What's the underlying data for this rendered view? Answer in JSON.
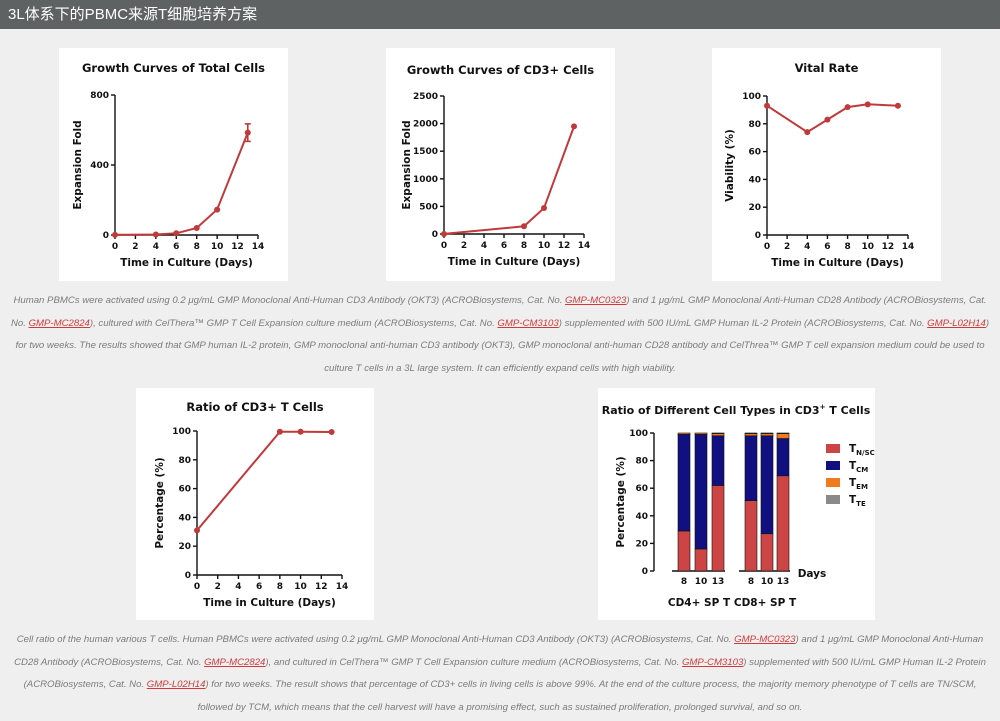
{
  "header": {
    "title": "3L体系下的PBMC来源T细胞培养方案"
  },
  "colors": {
    "series": "#c0393b",
    "tn_scm": "#cd4444",
    "tcm": "#111080",
    "tem": "#f07b1e",
    "tte": "#8a8a8a",
    "link": "#d23a3a"
  },
  "caption1": {
    "p1": "Human PBMCs were activated using 0.2 μg/mL GMP Monoclonal Anti-Human CD3 Antibody (OKT3) (ACROBiosystems, Cat. No. ",
    "l1": "GMP-MC0323",
    "p2": ") and 1 μg/mL GMP Monoclonal Anti-Human CD28 Antibody (ACROBiosystems, Cat. No. ",
    "l2": "GMP-MC2824",
    "p3": "), cultured with CelThera™ GMP T Cell Expansion culture medium (ACROBiosystems, Cat. No. ",
    "l3": "GMP-CM3103",
    "p4": ") supplemented with 500 IU/mL GMP Human IL-2 Protein (ACROBiosystems, Cat. No. ",
    "l4": "GMP-L02H14",
    "p5": ") for two weeks. The results showed that GMP human IL-2 protein, GMP monoclonal anti-human CD3 antibody (OKT3), GMP monoclonal anti-human CD28 antibody and CelThrea™ GMP T cell expansion medium could be used to culture T cells in a 3L large system. It can efficiently expand cells with high viability."
  },
  "caption2": {
    "p1": "Cell ratio of the human various T cells. Human PBMCs were activated using 0.2 μg/mL GMP Monoclonal Anti-Human CD3 Antibody (OKT3) (ACROBiosystems, Cat. No. ",
    "l1": "GMP-MC0323",
    "p2": ") and 1 μg/mL GMP Monoclonal Anti-Human CD28 Antibody (ACROBiosystems, Cat. No. ",
    "l2": "GMP-MC2824",
    "p3": "), and cultured in CelThera™ GMP T Cell Expansion culture medium (ACROBiosystems, Cat. No. ",
    "l3": "GMP-CM3103",
    "p4": ") supplemented with 500 IU/mL GMP Human IL-2 Protein (ACROBiosystems, Cat. No. ",
    "l4": "GMP-L02H14",
    "p5": ") for two weeks. The result shows that percentage of CD3+ cells in living cells is above 99%. At the end of the culture process, the majority memory phenotype of T cells are TN/SCM, followed by TCM, which means that the cell harvest will have a promising effect, such as sustained proliferation, prolonged survival, and so on."
  },
  "chart_data": [
    {
      "type": "line",
      "title": "Growth Curves of Total Cells",
      "xlabel": "Time in Culture (Days)",
      "ylabel": "Expansion Fold",
      "xlim": [
        0,
        14
      ],
      "ylim": [
        0,
        800
      ],
      "xticks": [
        0,
        2,
        4,
        6,
        8,
        10,
        12,
        14
      ],
      "yticks": [
        0,
        400,
        800
      ],
      "x": [
        0,
        4,
        6,
        8,
        10,
        13
      ],
      "y": [
        1,
        3,
        10,
        40,
        145,
        585
      ],
      "error": [
        0,
        0,
        0,
        0,
        0,
        50
      ]
    },
    {
      "type": "line",
      "title": "Growth Curves of CD3+ Cells",
      "xlabel": "Time in Culture (Days)",
      "ylabel": "Expansion Fold",
      "xlim": [
        0,
        14
      ],
      "ylim": [
        0,
        2500
      ],
      "xticks": [
        0,
        2,
        4,
        6,
        8,
        10,
        12,
        14
      ],
      "yticks": [
        0,
        500,
        1000,
        1500,
        2000,
        2500
      ],
      "x": [
        0,
        8,
        10,
        13
      ],
      "y": [
        1,
        140,
        470,
        1950
      ]
    },
    {
      "type": "line",
      "title": "Vital Rate",
      "xlabel": "Time in Culture (Days)",
      "ylabel": "Viability (%)",
      "xlim": [
        0,
        14
      ],
      "ylim": [
        0,
        100
      ],
      "xticks": [
        0,
        2,
        4,
        6,
        8,
        10,
        12,
        14
      ],
      "yticks": [
        0,
        20,
        40,
        60,
        80,
        100
      ],
      "x": [
        0,
        4,
        6,
        8,
        10,
        13
      ],
      "y": [
        93,
        74,
        83,
        92,
        94,
        93
      ]
    },
    {
      "type": "line",
      "title": "Ratio of CD3+ T Cells",
      "xlabel": "Time in Culture (Days)",
      "ylabel": "Percentage (%)",
      "xlim": [
        0,
        14
      ],
      "ylim": [
        0,
        100
      ],
      "xticks": [
        0,
        2,
        4,
        6,
        8,
        10,
        12,
        14
      ],
      "yticks": [
        0,
        20,
        40,
        60,
        80,
        100
      ],
      "x": [
        0,
        8,
        10,
        13
      ],
      "y": [
        31,
        99.5,
        99.5,
        99.3
      ]
    },
    {
      "type": "bar",
      "stacked": true,
      "title": "Ratio of Different Cell Types in CD3",
      "title_sup": "+",
      "title_end": " T Cells",
      "ylabel": "Percentage (%)",
      "xlabel": "Days",
      "ylim": [
        0,
        100
      ],
      "yticks": [
        0,
        20,
        40,
        60,
        80,
        100
      ],
      "groups": [
        {
          "name": "CD4+ SP T",
          "categories": [
            "8",
            "10",
            "13"
          ]
        },
        {
          "name": "CD8+ SP T",
          "categories": [
            "8",
            "10",
            "13"
          ]
        }
      ],
      "series": [
        {
          "name": "T",
          "sub": "N/SCM",
          "values": [
            29,
            16,
            62,
            51,
            27,
            69
          ]
        },
        {
          "name": "T",
          "sub": "CM",
          "values": [
            70,
            83,
            36,
            47,
            71,
            27
          ]
        },
        {
          "name": "T",
          "sub": "EM",
          "values": [
            1,
            1,
            1.5,
            1.5,
            1.5,
            3.5
          ]
        },
        {
          "name": "T",
          "sub": "TE",
          "values": [
            0,
            0,
            0.5,
            0.5,
            0.5,
            0.5
          ]
        }
      ]
    }
  ]
}
